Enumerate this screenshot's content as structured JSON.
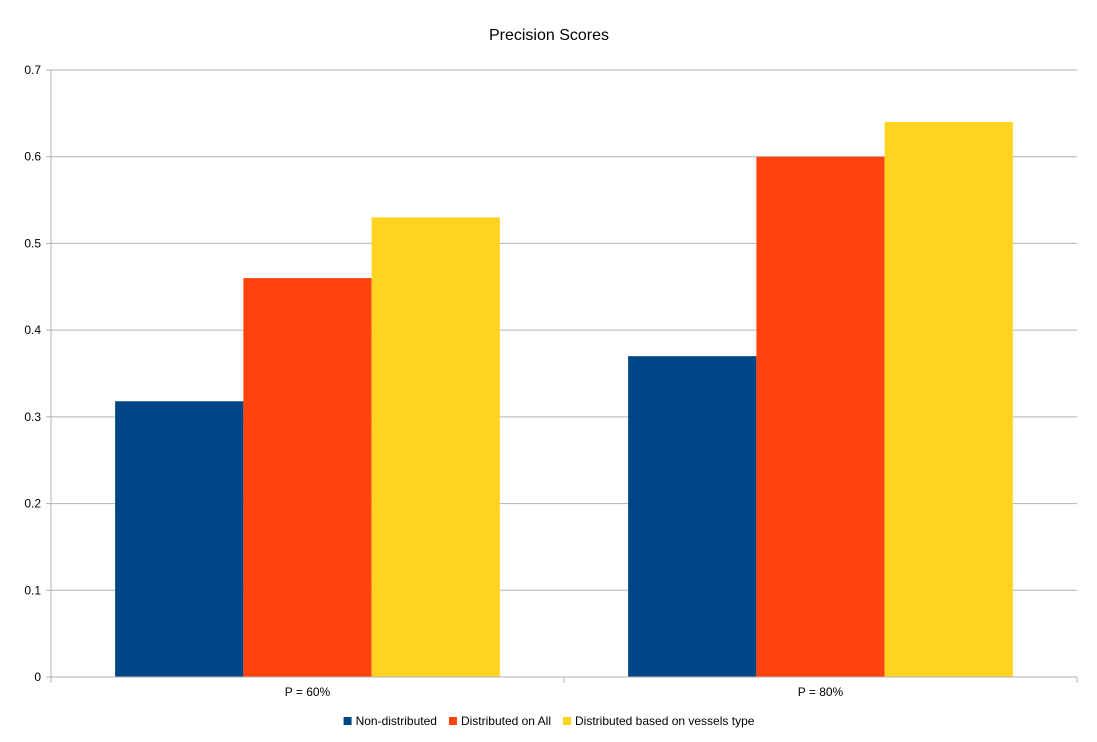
{
  "chart_data": {
    "type": "bar",
    "title": "Precision Scores",
    "categories": [
      "P = 60%",
      "P = 80%"
    ],
    "series": [
      {
        "name": "Non-distributed",
        "values": [
          0.318,
          0.37
        ],
        "color": "#004586"
      },
      {
        "name": "Distributed on All",
        "values": [
          0.46,
          0.6
        ],
        "color": "#ff420e"
      },
      {
        "name": "Distributed based on vessels type",
        "values": [
          0.53,
          0.64
        ],
        "color": "#ffd320"
      }
    ],
    "yticks": [
      "0",
      "0.1",
      "0.2",
      "0.3",
      "0.4",
      "0.5",
      "0.6",
      "0.7"
    ],
    "ylim": [
      0,
      0.7
    ],
    "grid": true,
    "legend": "bottom"
  }
}
